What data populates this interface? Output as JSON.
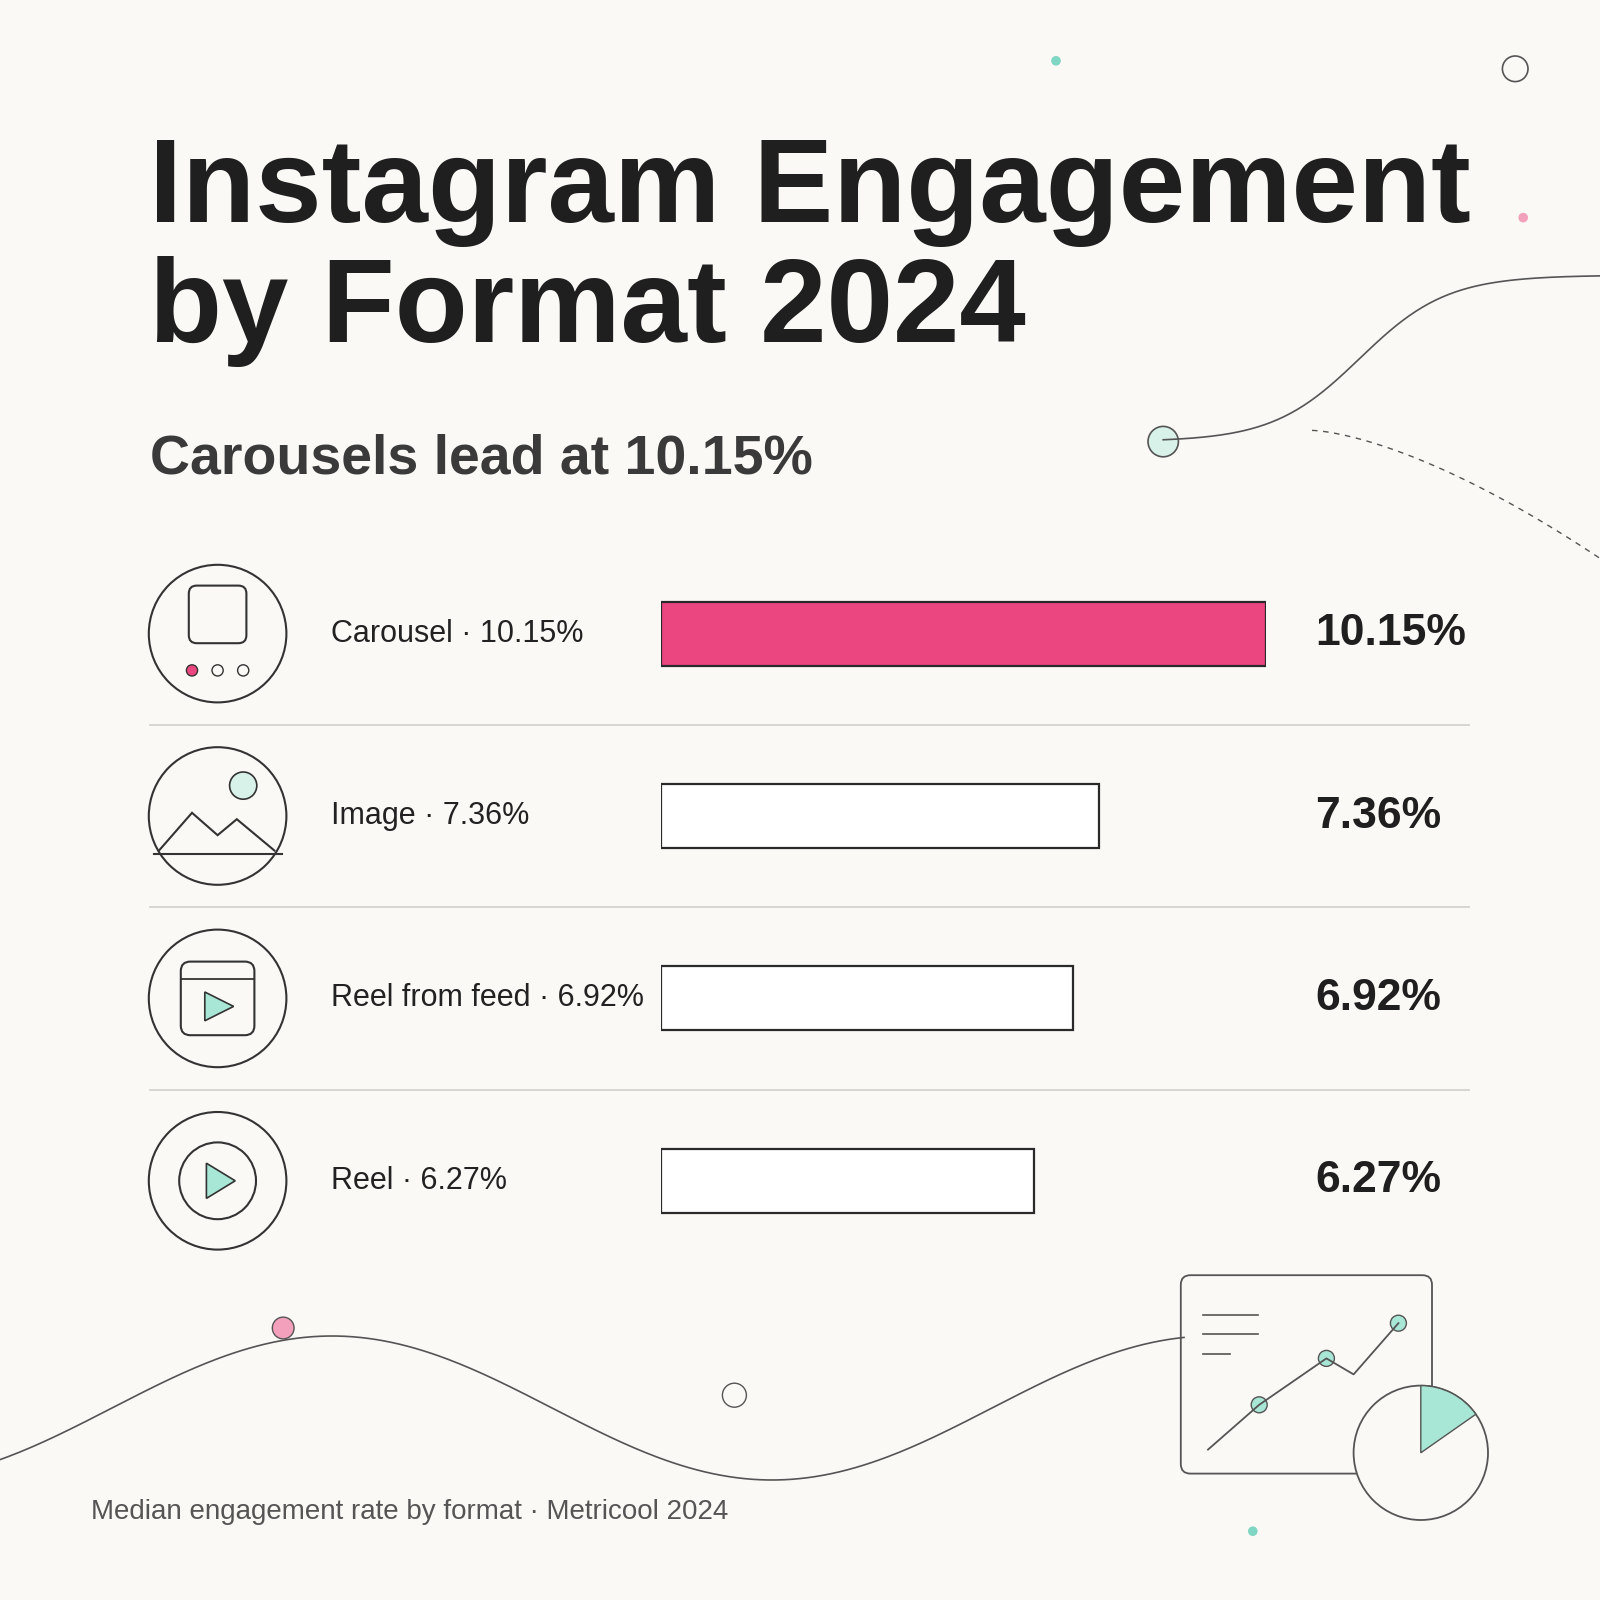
{
  "chart_data": {
    "type": "bar",
    "orientation": "horizontal",
    "title": "Instagram Engagement by Format 2024",
    "subtitle": "Carousels lead at 10.15%",
    "categories": [
      "Carousel · 10.15%",
      "Image · 7.36%",
      "Reel from feed · 6.92%",
      "Reel · 6.27%"
    ],
    "values": [
      10.15,
      7.36,
      6.92,
      6.27
    ],
    "value_labels": [
      "10.15%",
      "7.36%",
      "6.92%",
      "6.27%"
    ],
    "data_labels": true,
    "colors": [
      "#ec4680",
      "#ffffff",
      "#ffffff",
      "#ffffff"
    ],
    "xlim": [
      0,
      10.15
    ],
    "tick_labels": false,
    "grid": false,
    "footnote": "Median engagement rate by format · Metricool 2024"
  }
}
